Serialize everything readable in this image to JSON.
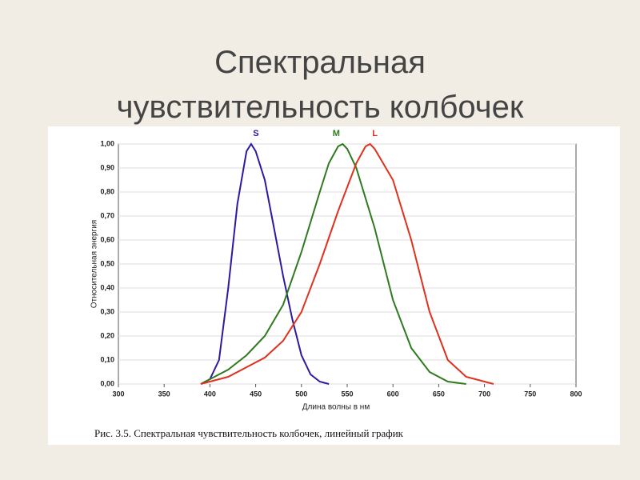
{
  "chart_data": {
    "type": "line",
    "title": "Спектральная чувствительность колбочек",
    "xlabel": "Длина волны в нм",
    "ylabel": "Относительная энергия",
    "caption": "Рис. 3.5. Спектральная чувствительность колбочек, линейный график",
    "xlim": [
      300,
      800
    ],
    "xticks": [
      300,
      350,
      400,
      450,
      500,
      550,
      600,
      650,
      700,
      750,
      800
    ],
    "ylim": [
      0,
      1
    ],
    "yticks": [
      {
        "value": 0,
        "label": "0,00"
      },
      {
        "value": 0.1,
        "label": "0,10"
      },
      {
        "value": 0.2,
        "label": "0,20"
      },
      {
        "value": 0.3,
        "label": "0,30"
      },
      {
        "value": 0.4,
        "label": "0,40"
      },
      {
        "value": 0.5,
        "label": "0,50"
      },
      {
        "value": 0.6,
        "label": "0,60"
      },
      {
        "value": 0.7,
        "label": "0,70"
      },
      {
        "value": 0.8,
        "label": "0,80"
      },
      {
        "value": 0.9,
        "label": "0,90"
      },
      {
        "value": 1,
        "label": "1,00"
      }
    ],
    "grid": true,
    "series": [
      {
        "name": "S",
        "color": "#2a1aa0",
        "x": [
          390,
          400,
          410,
          420,
          430,
          440,
          445,
          450,
          460,
          470,
          480,
          490,
          500,
          510,
          520,
          530
        ],
        "values": [
          0,
          0.02,
          0.1,
          0.4,
          0.75,
          0.97,
          1.0,
          0.97,
          0.85,
          0.65,
          0.45,
          0.27,
          0.12,
          0.04,
          0.01,
          0
        ]
      },
      {
        "name": "M",
        "color": "#2e7a1e",
        "x": [
          390,
          400,
          420,
          440,
          460,
          480,
          500,
          520,
          530,
          540,
          545,
          550,
          560,
          580,
          600,
          620,
          640,
          660,
          680
        ],
        "values": [
          0,
          0.02,
          0.06,
          0.12,
          0.2,
          0.33,
          0.55,
          0.8,
          0.92,
          0.99,
          1.0,
          0.98,
          0.9,
          0.65,
          0.35,
          0.15,
          0.05,
          0.01,
          0
        ]
      },
      {
        "name": "L",
        "color": "#e0301e",
        "x": [
          390,
          400,
          420,
          440,
          460,
          480,
          500,
          520,
          540,
          560,
          570,
          575,
          580,
          600,
          620,
          640,
          660,
          680,
          700,
          710
        ],
        "values": [
          0,
          0.01,
          0.03,
          0.07,
          0.11,
          0.18,
          0.3,
          0.5,
          0.72,
          0.92,
          0.99,
          1.0,
          0.98,
          0.85,
          0.6,
          0.3,
          0.1,
          0.03,
          0.01,
          0
        ]
      }
    ]
  }
}
